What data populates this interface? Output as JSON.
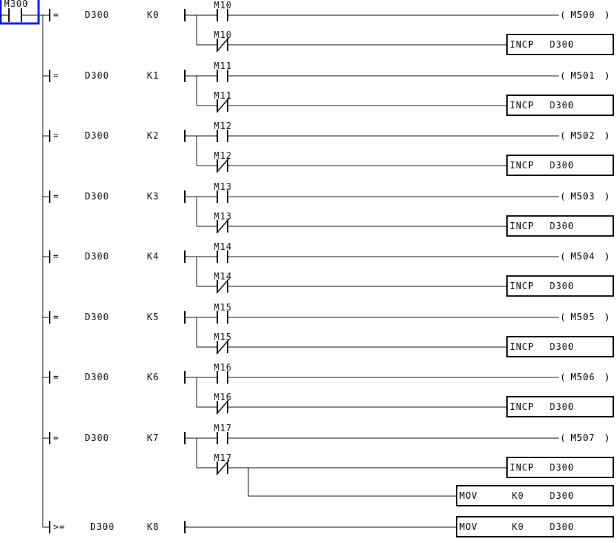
{
  "colors": {
    "background": "#ffffff",
    "wire": "#000000",
    "text": "#000000",
    "selection": "#0010f0"
  },
  "ladder": {
    "input": {
      "label": "M300",
      "type": "NO",
      "selected": true
    },
    "symbols": {
      "coil_open": "(",
      "coil_close": ")"
    },
    "rungs": [
      {
        "compare": {
          "op": "=",
          "a": "D300",
          "b": "K0"
        },
        "on": {
          "contact": "M10",
          "coil": "M500"
        },
        "off": {
          "contact": "M10",
          "box": {
            "mnemonic": "INCP",
            "operands": [
              "D300"
            ]
          }
        }
      },
      {
        "compare": {
          "op": "=",
          "a": "D300",
          "b": "K1"
        },
        "on": {
          "contact": "M11",
          "coil": "M501"
        },
        "off": {
          "contact": "M11",
          "box": {
            "mnemonic": "INCP",
            "operands": [
              "D300"
            ]
          }
        }
      },
      {
        "compare": {
          "op": "=",
          "a": "D300",
          "b": "K2"
        },
        "on": {
          "contact": "M12",
          "coil": "M502"
        },
        "off": {
          "contact": "M12",
          "box": {
            "mnemonic": "INCP",
            "operands": [
              "D300"
            ]
          }
        }
      },
      {
        "compare": {
          "op": "=",
          "a": "D300",
          "b": "K3"
        },
        "on": {
          "contact": "M13",
          "coil": "M503"
        },
        "off": {
          "contact": "M13",
          "box": {
            "mnemonic": "INCP",
            "operands": [
              "D300"
            ]
          }
        }
      },
      {
        "compare": {
          "op": "=",
          "a": "D300",
          "b": "K4"
        },
        "on": {
          "contact": "M14",
          "coil": "M504"
        },
        "off": {
          "contact": "M14",
          "box": {
            "mnemonic": "INCP",
            "operands": [
              "D300"
            ]
          }
        }
      },
      {
        "compare": {
          "op": "=",
          "a": "D300",
          "b": "K5"
        },
        "on": {
          "contact": "M15",
          "coil": "M505"
        },
        "off": {
          "contact": "M15",
          "box": {
            "mnemonic": "INCP",
            "operands": [
              "D300"
            ]
          }
        }
      },
      {
        "compare": {
          "op": "=",
          "a": "D300",
          "b": "K6"
        },
        "on": {
          "contact": "M16",
          "coil": "M506"
        },
        "off": {
          "contact": "M16",
          "box": {
            "mnemonic": "INCP",
            "operands": [
              "D300"
            ]
          }
        }
      },
      {
        "compare": {
          "op": "=",
          "a": "D300",
          "b": "K7"
        },
        "on": {
          "contact": "M17",
          "coil": "M507"
        },
        "off": {
          "contact": "M17",
          "box": {
            "mnemonic": "INCP",
            "operands": [
              "D300"
            ]
          }
        },
        "reset": {
          "mnemonic": "MOV",
          "operands": [
            "K0",
            "D300"
          ]
        }
      }
    ],
    "final_rung": {
      "compare": {
        "op": ">=",
        "a": "D300",
        "b": "K8"
      },
      "box": {
        "mnemonic": "MOV",
        "operands": [
          "K0",
          "D300"
        ]
      }
    }
  }
}
